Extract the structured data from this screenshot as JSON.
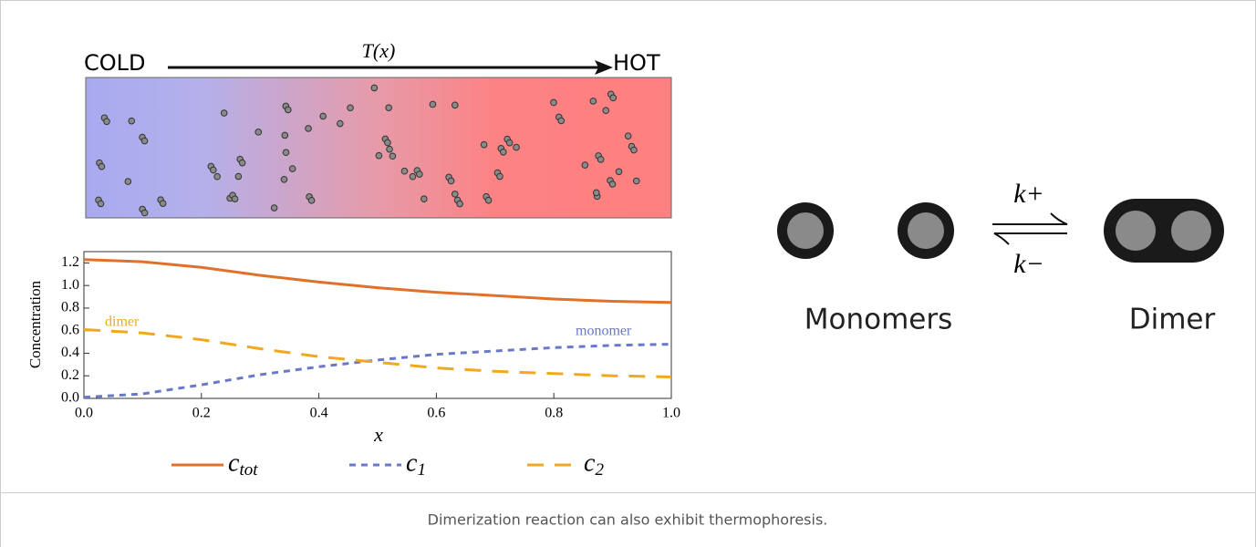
{
  "chart_data": {
    "type": "line",
    "ylabel": "Concentration",
    "xlabel": "x",
    "x": [
      0,
      0.1,
      0.2,
      0.3,
      0.4,
      0.5,
      0.6,
      0.7,
      0.8,
      0.9,
      1
    ],
    "series": [
      {
        "name": "c_tot",
        "color": "#e0702a",
        "style": "solid",
        "values": [
          1.23,
          1.21,
          1.16,
          1.09,
          1.03,
          0.98,
          0.94,
          0.91,
          0.88,
          0.86,
          0.85
        ]
      },
      {
        "name": "c_1",
        "color": "#6a78c8",
        "style": "dotted",
        "values": [
          0.01,
          0.04,
          0.12,
          0.21,
          0.28,
          0.34,
          0.39,
          0.42,
          0.45,
          0.47,
          0.48
        ]
      },
      {
        "name": "c_2",
        "color": "#f0a820",
        "style": "dashed",
        "values": [
          0.61,
          0.58,
          0.52,
          0.44,
          0.37,
          0.32,
          0.27,
          0.24,
          0.22,
          0.2,
          0.19
        ]
      }
    ],
    "annotations": [
      {
        "text": "dimer",
        "color": "#f0a820"
      },
      {
        "text": "monomer",
        "color": "#6a78c8"
      }
    ],
    "xlim": [
      0,
      1
    ],
    "ylim": [
      0,
      1.3
    ],
    "xticks": [
      {
        "value": 0,
        "label": "0.0"
      },
      0.2,
      0.4,
      0.6,
      0.8,
      {
        "value": 1,
        "label": "1.0"
      }
    ],
    "yticks": [
      {
        "value": 0,
        "label": "0.0"
      },
      0.2,
      0.4,
      0.6,
      0.8,
      {
        "value": 1,
        "label": "1.0"
      },
      1.2
    ]
  },
  "gradient": {
    "left_label": "COLD",
    "right_label": "HOT",
    "axis_label": "T(x)"
  },
  "reaction": {
    "forward_rate": "k+",
    "backward_rate": "k−",
    "left_label": "Monomers",
    "right_label": "Dimer"
  },
  "caption": "Dimerization reaction can also exhibit thermophoresis."
}
